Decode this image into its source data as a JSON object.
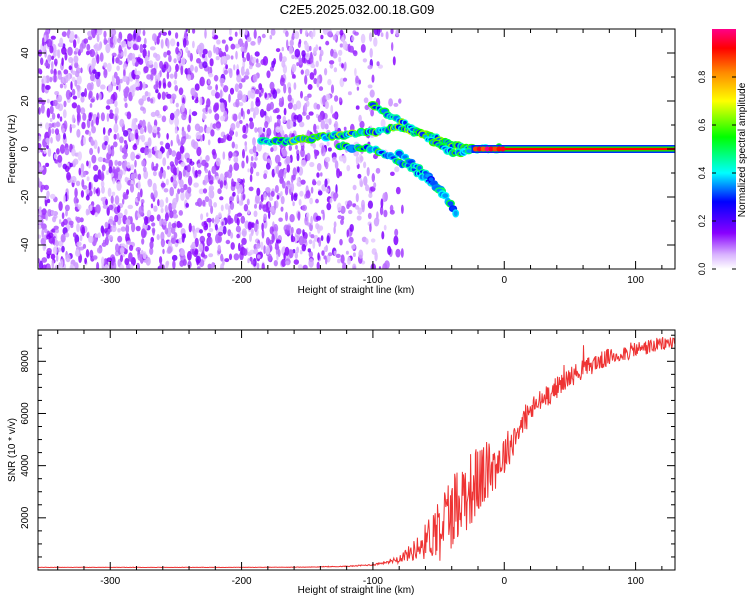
{
  "title": "C2E5.2025.032.00.18.G09",
  "chart_data": [
    {
      "type": "heatmap",
      "xlabel": "Height of straight line (km)",
      "ylabel": "Frequency (Hz)",
      "xlim": [
        -355,
        130
      ],
      "ylim": [
        -50,
        50
      ],
      "xticks": [
        -300,
        -200,
        -100,
        0,
        100
      ],
      "yticks": [
        -40,
        -20,
        0,
        20,
        40
      ],
      "colorbar": {
        "label": "Normalized spectral amplitude",
        "range": [
          0,
          1
        ],
        "ticks": [
          "0.0",
          "0.2",
          "0.4",
          "0.6",
          "0.8"
        ],
        "colormap": [
          "#ffffff",
          "#8800ff",
          "#0000ff",
          "#00ffff",
          "#00ff00",
          "#ffff00",
          "#ff8800",
          "#ff0000",
          "#ff0088"
        ]
      },
      "noise_region": {
        "x": [
          -355,
          -100
        ],
        "y": [
          -50,
          50
        ],
        "amplitude": 0.15
      },
      "tracks": [
        {
          "points": [
            [
              -185,
              3
            ],
            [
              -160,
              3.5
            ],
            [
              -140,
              5
            ],
            [
              -120,
              6
            ],
            [
              -100,
              7
            ],
            [
              -80,
              9
            ],
            [
              -60,
              6
            ],
            [
              -45,
              3
            ],
            [
              -35,
              1
            ],
            [
              -25,
              0.5
            ],
            [
              -10,
              0.3
            ],
            [
              0,
              0.2
            ]
          ],
          "amplitude": 0.3
        },
        {
          "points": [
            [
              -100,
              18
            ],
            [
              -80,
              12
            ],
            [
              -60,
              5
            ],
            [
              -45,
              0
            ],
            [
              -35,
              -2
            ],
            [
              -25,
              -1
            ]
          ],
          "amplitude": 0.3
        },
        {
          "points": [
            [
              -125,
              1
            ],
            [
              -100,
              0
            ],
            [
              -80,
              -5
            ],
            [
              -60,
              -12
            ],
            [
              -45,
              -19
            ]
          ],
          "amplitude": 0.25
        },
        {
          "points": [
            [
              -80,
              -2
            ],
            [
              -60,
              -10
            ],
            [
              -45,
              -20
            ],
            [
              -35,
              -28
            ]
          ],
          "amplitude": 0.2
        },
        {
          "points": [
            [
              -25,
              0
            ],
            [
              0,
              0
            ],
            [
              50,
              0
            ],
            [
              100,
              0
            ],
            [
              130,
              0
            ]
          ],
          "amplitude": 0.85
        }
      ]
    },
    {
      "type": "line",
      "xlabel": "Height of straight line (km)",
      "ylabel": "SNR (10 * v/v)",
      "xlim": [
        -355,
        130
      ],
      "ylim": [
        0,
        9200
      ],
      "xticks": [
        -300,
        -200,
        -100,
        0,
        100
      ],
      "yticks": [
        2000,
        4000,
        6000,
        8000
      ],
      "series_color": "#ee3333",
      "series": [
        {
          "x": [
            -355,
            -300,
            -250,
            -200,
            -150,
            -120,
            -100,
            -90,
            -80,
            -70,
            -60,
            -50,
            -40,
            -30,
            -20,
            -10,
            0,
            10,
            20,
            30,
            40,
            50,
            60,
            70,
            80,
            90,
            100,
            110,
            120,
            130
          ],
          "values": [
            100,
            100,
            100,
            100,
            110,
            140,
            200,
            300,
            450,
            700,
            1100,
            1700,
            2300,
            2900,
            3400,
            3900,
            4400,
            5300,
            6100,
            6600,
            7000,
            7400,
            7700,
            7950,
            8150,
            8300,
            8450,
            8550,
            8650,
            8750
          ],
          "noise": [
            5,
            5,
            5,
            5,
            8,
            15,
            30,
            60,
            150,
            350,
            700,
            1200,
            1500,
            1500,
            1400,
            1100,
            800,
            600,
            500,
            450,
            420,
            400,
            380,
            360,
            340,
            330,
            320,
            300,
            280,
            260
          ]
        }
      ]
    }
  ]
}
